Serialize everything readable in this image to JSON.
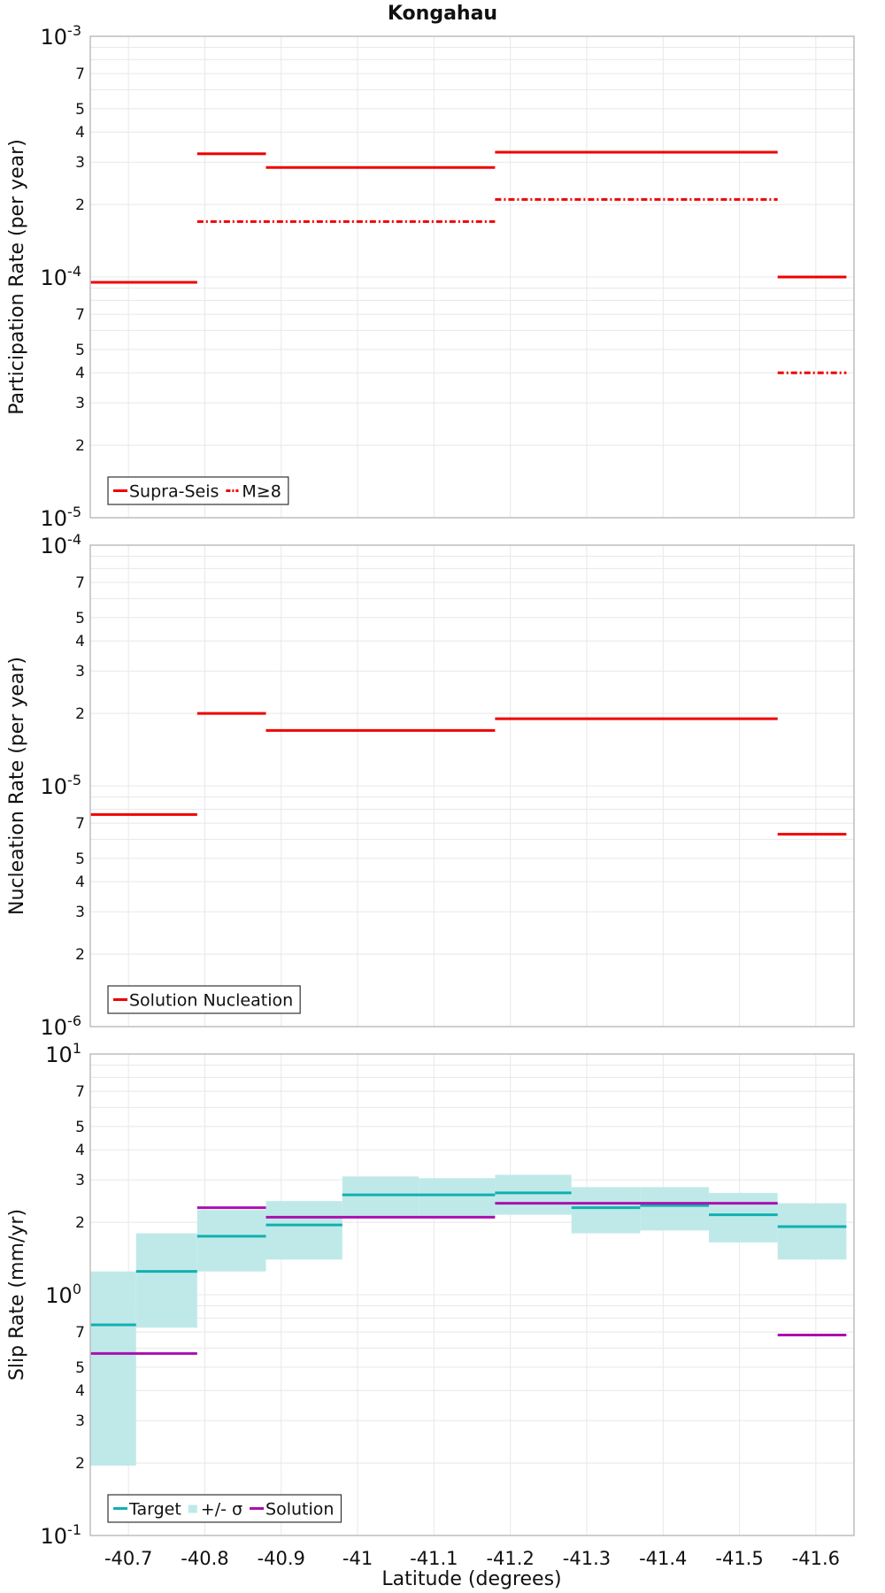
{
  "title": "Kongahau",
  "xlabel": "Latitude (degrees)",
  "x_ticks": [
    "-40.7",
    "-40.8",
    "-40.9",
    "-41",
    "-41.1",
    "-41.2",
    "-41.3",
    "-41.4",
    "-41.5",
    "-41.6"
  ],
  "colors": {
    "red": "#ee0000",
    "cyan": "#10b0b0",
    "band": "#bfe9e9",
    "purple": "#aa10b0",
    "grid": "#e8e8e8",
    "frame": "#bdbdbd"
  },
  "chart_data": [
    {
      "type": "line",
      "style": "step",
      "ylabel": "Participation Rate (per year)",
      "yscale": "log",
      "ylim": [
        1e-05,
        0.001
      ],
      "xlim": [
        -40.65,
        -41.65
      ],
      "x_axis_reversed": true,
      "decade_labels": [
        {
          "base": "10",
          "exp": "-5"
        },
        {
          "base": "10",
          "exp": "-4"
        },
        {
          "base": "10",
          "exp": "-3"
        }
      ],
      "minor_tick_labels": [
        "2",
        "3",
        "4",
        "5",
        "7"
      ],
      "legend": "bottom-left",
      "series": [
        {
          "name": "Supra-Seis",
          "dash": "solid",
          "color_key": "red",
          "segments": [
            {
              "x0": -40.65,
              "x1": -40.79,
              "y": 9.5e-05
            },
            {
              "x0": -40.79,
              "x1": -40.88,
              "y": 0.000325
            },
            {
              "x0": -40.88,
              "x1": -41.18,
              "y": 0.000285
            },
            {
              "x0": -41.18,
              "x1": -41.55,
              "y": 0.00033
            },
            {
              "x0": -41.55,
              "x1": -41.64,
              "y": 0.0001
            }
          ]
        },
        {
          "name": "M≥8",
          "dash": "dashdot",
          "color_key": "red",
          "segments": [
            {
              "x0": -40.79,
              "x1": -41.18,
              "y": 0.00017
            },
            {
              "x0": -41.18,
              "x1": -41.55,
              "y": 0.00021
            },
            {
              "x0": -41.55,
              "x1": -41.64,
              "y": 4e-05
            }
          ]
        }
      ]
    },
    {
      "type": "line",
      "style": "step",
      "ylabel": "Nucleation Rate (per year)",
      "yscale": "log",
      "ylim": [
        1e-06,
        0.0001
      ],
      "xlim": [
        -40.65,
        -41.65
      ],
      "x_axis_reversed": true,
      "decade_labels": [
        {
          "base": "10",
          "exp": "-6"
        },
        {
          "base": "10",
          "exp": "-5"
        },
        {
          "base": "10",
          "exp": "-4"
        }
      ],
      "minor_tick_labels": [
        "2",
        "3",
        "4",
        "5",
        "7"
      ],
      "legend": "bottom-left",
      "series": [
        {
          "name": "Solution Nucleation",
          "dash": "solid",
          "color_key": "red",
          "segments": [
            {
              "x0": -40.65,
              "x1": -40.79,
              "y": 7.6e-06
            },
            {
              "x0": -40.79,
              "x1": -40.88,
              "y": 2e-05
            },
            {
              "x0": -40.88,
              "x1": -41.18,
              "y": 1.7e-05
            },
            {
              "x0": -41.18,
              "x1": -41.55,
              "y": 1.9e-05
            },
            {
              "x0": -41.55,
              "x1": -41.64,
              "y": 6.3e-06
            }
          ]
        }
      ]
    },
    {
      "type": "line",
      "style": "step",
      "ylabel": "Slip Rate (mm/yr)",
      "yscale": "log",
      "ylim": [
        0.1,
        10
      ],
      "xlim": [
        -40.65,
        -41.65
      ],
      "x_axis_reversed": true,
      "decade_labels": [
        {
          "base": "10",
          "exp": "-1"
        },
        {
          "base": "10",
          "exp": "0"
        },
        {
          "base": "10",
          "exp": "1"
        }
      ],
      "minor_tick_labels": [
        "2",
        "3",
        "4",
        "5",
        "7"
      ],
      "legend": "bottom-left",
      "series": [
        {
          "name": "Target",
          "dash": "solid",
          "color_key": "cyan",
          "segments": [
            {
              "x0": -40.65,
              "x1": -40.71,
              "y": 0.75,
              "lo": 0.195,
              "hi": 1.25
            },
            {
              "x0": -40.71,
              "x1": -40.79,
              "y": 1.25,
              "lo": 0.73,
              "hi": 1.8
            },
            {
              "x0": -40.79,
              "x1": -40.88,
              "y": 1.75,
              "lo": 1.25,
              "hi": 2.25
            },
            {
              "x0": -40.88,
              "x1": -40.98,
              "y": 1.95,
              "lo": 1.4,
              "hi": 2.45
            },
            {
              "x0": -40.98,
              "x1": -41.08,
              "y": 2.6,
              "lo": 2.1,
              "hi": 3.1
            },
            {
              "x0": -41.08,
              "x1": -41.18,
              "y": 2.6,
              "lo": 2.1,
              "hi": 3.05
            },
            {
              "x0": -41.18,
              "x1": -41.28,
              "y": 2.65,
              "lo": 2.15,
              "hi": 3.15
            },
            {
              "x0": -41.28,
              "x1": -41.37,
              "y": 2.3,
              "lo": 1.8,
              "hi": 2.8
            },
            {
              "x0": -41.37,
              "x1": -41.46,
              "y": 2.35,
              "lo": 1.85,
              "hi": 2.8
            },
            {
              "x0": -41.46,
              "x1": -41.55,
              "y": 2.15,
              "lo": 1.65,
              "hi": 2.65
            },
            {
              "x0": -41.55,
              "x1": -41.64,
              "y": 1.92,
              "lo": 1.4,
              "hi": 2.4
            }
          ]
        },
        {
          "name": "+/- σ",
          "dash": "band",
          "color_key": "band",
          "segments": []
        },
        {
          "name": "Solution",
          "dash": "solid",
          "color_key": "purple",
          "segments": [
            {
              "x0": -40.65,
              "x1": -40.79,
              "y": 0.57
            },
            {
              "x0": -40.79,
              "x1": -40.88,
              "y": 2.3
            },
            {
              "x0": -40.88,
              "x1": -41.18,
              "y": 2.1
            },
            {
              "x0": -41.18,
              "x1": -41.55,
              "y": 2.4
            },
            {
              "x0": -41.55,
              "x1": -41.64,
              "y": 0.68
            }
          ]
        }
      ]
    }
  ]
}
